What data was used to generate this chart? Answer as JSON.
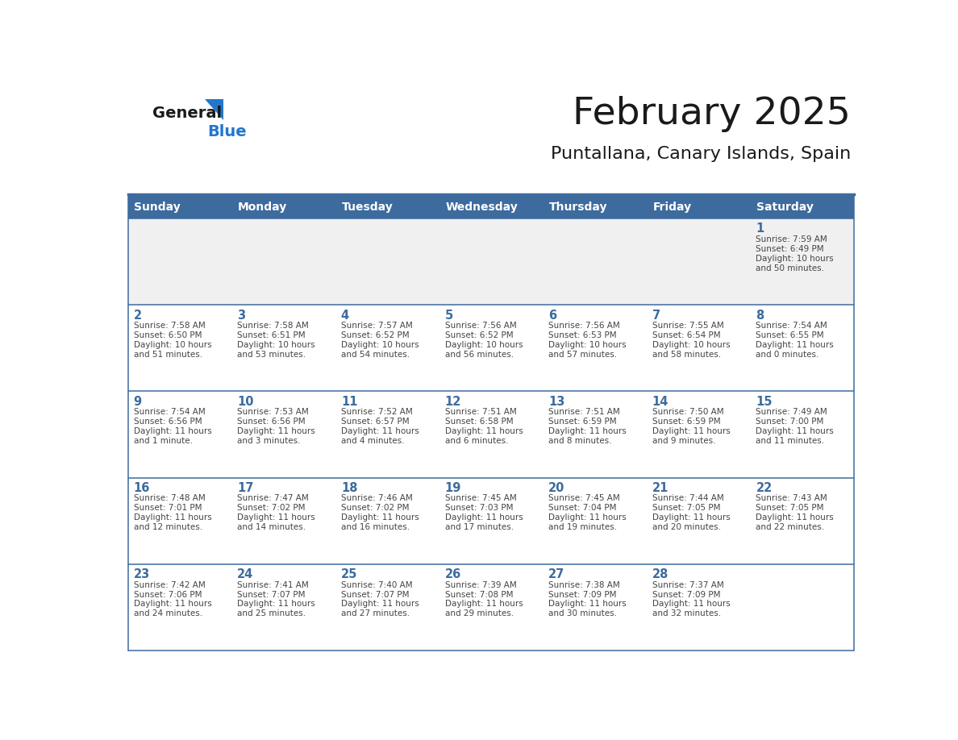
{
  "title": "February 2025",
  "subtitle": "Puntallana, Canary Islands, Spain",
  "days_of_week": [
    "Sunday",
    "Monday",
    "Tuesday",
    "Wednesday",
    "Thursday",
    "Friday",
    "Saturday"
  ],
  "header_bg": "#3d6b9e",
  "header_text": "#ffffff",
  "row_bg_week1": "#f0f0f0",
  "row_bg_other": "#ffffff",
  "day_number_color": "#3d6b9e",
  "info_text_color": "#444444",
  "title_color": "#1a1a1a",
  "subtitle_color": "#1a1a1a",
  "logo_general_color": "#1a1a1a",
  "logo_blue_color": "#2277cc",
  "row_border_color": "#3d6b9e",
  "calendar_data": [
    [
      {
        "day": null,
        "info": ""
      },
      {
        "day": null,
        "info": ""
      },
      {
        "day": null,
        "info": ""
      },
      {
        "day": null,
        "info": ""
      },
      {
        "day": null,
        "info": ""
      },
      {
        "day": null,
        "info": ""
      },
      {
        "day": 1,
        "info": "Sunrise: 7:59 AM\nSunset: 6:49 PM\nDaylight: 10 hours\nand 50 minutes."
      }
    ],
    [
      {
        "day": 2,
        "info": "Sunrise: 7:58 AM\nSunset: 6:50 PM\nDaylight: 10 hours\nand 51 minutes."
      },
      {
        "day": 3,
        "info": "Sunrise: 7:58 AM\nSunset: 6:51 PM\nDaylight: 10 hours\nand 53 minutes."
      },
      {
        "day": 4,
        "info": "Sunrise: 7:57 AM\nSunset: 6:52 PM\nDaylight: 10 hours\nand 54 minutes."
      },
      {
        "day": 5,
        "info": "Sunrise: 7:56 AM\nSunset: 6:52 PM\nDaylight: 10 hours\nand 56 minutes."
      },
      {
        "day": 6,
        "info": "Sunrise: 7:56 AM\nSunset: 6:53 PM\nDaylight: 10 hours\nand 57 minutes."
      },
      {
        "day": 7,
        "info": "Sunrise: 7:55 AM\nSunset: 6:54 PM\nDaylight: 10 hours\nand 58 minutes."
      },
      {
        "day": 8,
        "info": "Sunrise: 7:54 AM\nSunset: 6:55 PM\nDaylight: 11 hours\nand 0 minutes."
      }
    ],
    [
      {
        "day": 9,
        "info": "Sunrise: 7:54 AM\nSunset: 6:56 PM\nDaylight: 11 hours\nand 1 minute."
      },
      {
        "day": 10,
        "info": "Sunrise: 7:53 AM\nSunset: 6:56 PM\nDaylight: 11 hours\nand 3 minutes."
      },
      {
        "day": 11,
        "info": "Sunrise: 7:52 AM\nSunset: 6:57 PM\nDaylight: 11 hours\nand 4 minutes."
      },
      {
        "day": 12,
        "info": "Sunrise: 7:51 AM\nSunset: 6:58 PM\nDaylight: 11 hours\nand 6 minutes."
      },
      {
        "day": 13,
        "info": "Sunrise: 7:51 AM\nSunset: 6:59 PM\nDaylight: 11 hours\nand 8 minutes."
      },
      {
        "day": 14,
        "info": "Sunrise: 7:50 AM\nSunset: 6:59 PM\nDaylight: 11 hours\nand 9 minutes."
      },
      {
        "day": 15,
        "info": "Sunrise: 7:49 AM\nSunset: 7:00 PM\nDaylight: 11 hours\nand 11 minutes."
      }
    ],
    [
      {
        "day": 16,
        "info": "Sunrise: 7:48 AM\nSunset: 7:01 PM\nDaylight: 11 hours\nand 12 minutes."
      },
      {
        "day": 17,
        "info": "Sunrise: 7:47 AM\nSunset: 7:02 PM\nDaylight: 11 hours\nand 14 minutes."
      },
      {
        "day": 18,
        "info": "Sunrise: 7:46 AM\nSunset: 7:02 PM\nDaylight: 11 hours\nand 16 minutes."
      },
      {
        "day": 19,
        "info": "Sunrise: 7:45 AM\nSunset: 7:03 PM\nDaylight: 11 hours\nand 17 minutes."
      },
      {
        "day": 20,
        "info": "Sunrise: 7:45 AM\nSunset: 7:04 PM\nDaylight: 11 hours\nand 19 minutes."
      },
      {
        "day": 21,
        "info": "Sunrise: 7:44 AM\nSunset: 7:05 PM\nDaylight: 11 hours\nand 20 minutes."
      },
      {
        "day": 22,
        "info": "Sunrise: 7:43 AM\nSunset: 7:05 PM\nDaylight: 11 hours\nand 22 minutes."
      }
    ],
    [
      {
        "day": 23,
        "info": "Sunrise: 7:42 AM\nSunset: 7:06 PM\nDaylight: 11 hours\nand 24 minutes."
      },
      {
        "day": 24,
        "info": "Sunrise: 7:41 AM\nSunset: 7:07 PM\nDaylight: 11 hours\nand 25 minutes."
      },
      {
        "day": 25,
        "info": "Sunrise: 7:40 AM\nSunset: 7:07 PM\nDaylight: 11 hours\nand 27 minutes."
      },
      {
        "day": 26,
        "info": "Sunrise: 7:39 AM\nSunset: 7:08 PM\nDaylight: 11 hours\nand 29 minutes."
      },
      {
        "day": 27,
        "info": "Sunrise: 7:38 AM\nSunset: 7:09 PM\nDaylight: 11 hours\nand 30 minutes."
      },
      {
        "day": 28,
        "info": "Sunrise: 7:37 AM\nSunset: 7:09 PM\nDaylight: 11 hours\nand 32 minutes."
      },
      {
        "day": null,
        "info": ""
      }
    ]
  ]
}
